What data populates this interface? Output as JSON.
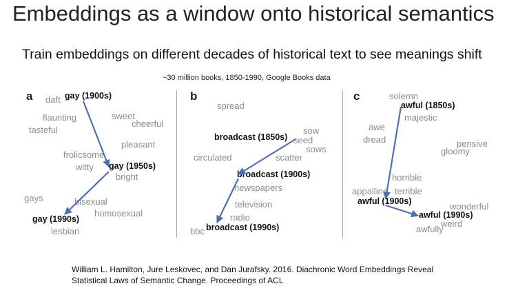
{
  "title": "Embeddings as a window onto historical semantics",
  "subtitle": "Train embeddings on different decades of historical text to see meanings shift",
  "source": "~30 million books, 1850-1990, Google Books data",
  "citation": {
    "line1": "William L. Hamilton, Jure Leskovec, and Dan Jurafsky. 2016. Diachronic Word Embeddings Reveal",
    "line2": "Statistical Laws of Semantic Change. Proceedings of ACL"
  },
  "colors": {
    "arrow": "#4a6fb5",
    "key_word": "#111111",
    "neighbor_word": "#8c8c8c"
  },
  "panels": {
    "a": {
      "letter": "a",
      "key": [
        "gay (1900s)",
        "gay (1950s)",
        "gay (1990s)"
      ],
      "neighbors": [
        "daft",
        "flaunting",
        "sweet",
        "cheerful",
        "tasteful",
        "pleasant",
        "frolicsome",
        "witty",
        "bright",
        "gays",
        "bisexual",
        "homosexual",
        "lesbian"
      ]
    },
    "b": {
      "letter": "b",
      "key": [
        "broadcast (1850s)",
        "broadcast (1900s)",
        "broadcast (1990s)"
      ],
      "neighbors": [
        "spread",
        "sow",
        "seed",
        "sows",
        "circulated",
        "scatter",
        "newspapers",
        "television",
        "radio",
        "bbc"
      ]
    },
    "c": {
      "letter": "c",
      "key": [
        "awful (1850s)",
        "awful (1900s)",
        "awful (1990s)"
      ],
      "neighbors": [
        "solemn",
        "majestic",
        "awe",
        "dread",
        "pensive",
        "gloomy",
        "horrible",
        "appalling",
        "terrible",
        "wonderful",
        "weird",
        "awfully"
      ]
    }
  }
}
